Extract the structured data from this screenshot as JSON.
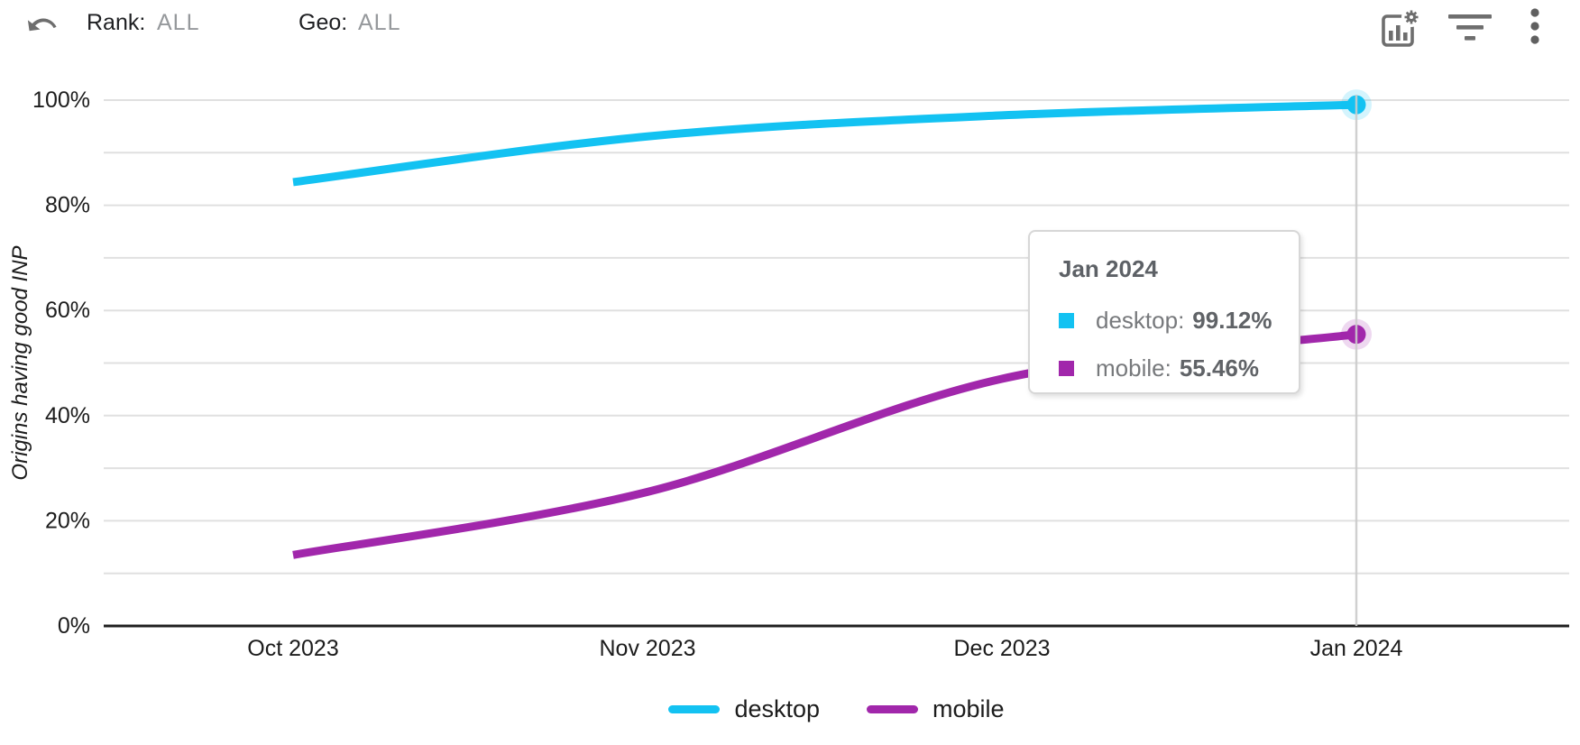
{
  "toolbar": {
    "rank_label": "Rank:",
    "rank_value": "ALL",
    "geo_label": "Geo:",
    "geo_value": "ALL",
    "icons": {
      "undo": "undo-arrow",
      "chart_settings": "bar-chart-with-gear",
      "filter": "filter-lines",
      "menu": "vertical-three-dots"
    }
  },
  "chart_data": {
    "type": "line",
    "ylabel": "Origins having good INP",
    "x": [
      "Oct 2023",
      "Nov 2023",
      "Dec 2023",
      "Jan 2024"
    ],
    "series": [
      {
        "name": "desktop",
        "color": "#13c2f2",
        "values": [
          84.4,
          93.1,
          97.1,
          99.12
        ]
      },
      {
        "name": "mobile",
        "color": "#a127ab",
        "values": [
          13.5,
          25.5,
          47.0,
          55.46
        ]
      }
    ],
    "y_ticks": [
      "0%",
      "20%",
      "40%",
      "60%",
      "80%",
      "100%"
    ],
    "ylim": [
      0,
      100
    ],
    "grid": "horizontal every 10%",
    "legend_position": "bottom",
    "focused_point": {
      "x": "Jan 2024",
      "desktop": "99.12%",
      "mobile": "55.46%"
    }
  },
  "tooltip": {
    "title": "Jan 2024",
    "rows": [
      {
        "label": "desktop:",
        "value": "99.12%"
      },
      {
        "label": "mobile:",
        "value": "55.46%"
      }
    ]
  },
  "colors": {
    "gridline": "#e0e0e0",
    "axis": "#1f1f1f",
    "crosshair": "#cccccc",
    "tick_text": "#1c1c1c",
    "icon_gray": "#6e6e6e"
  }
}
